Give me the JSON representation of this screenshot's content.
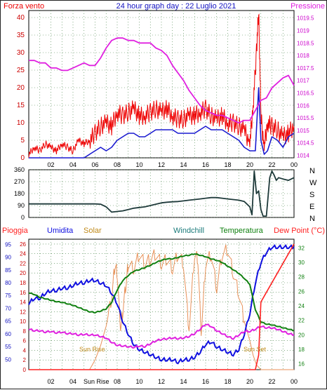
{
  "header": {
    "left_title": "Forza vento",
    "center_title": "24 hour graph day : 22 Luglio 2021",
    "right_title": "Pressione"
  },
  "colors": {
    "wind": "#ee0000",
    "gust_line": "#1a1ad0",
    "pressure": "#e020e0",
    "direction": "#1e3a3a",
    "humidity": "#1010e0",
    "solar": "#e8925a",
    "windchill": "#1a7a7a",
    "temperature": "#108010",
    "dewpoint": "#ff2020",
    "rain": "#ff2020",
    "grid": "#3a7a3a",
    "axis": "#000000"
  },
  "chart_data": [
    {
      "type": "line",
      "name": "wind-pressure-panel",
      "title": "24 hour graph day : 22 Luglio 2021",
      "x_ticks": [
        "02",
        "04",
        "06",
        "08",
        "10",
        "12",
        "14",
        "16",
        "18",
        "20",
        "22",
        "00"
      ],
      "xlim": [
        0,
        24
      ],
      "left_axis": {
        "label": "Forza vento",
        "ticks": [
          0,
          5,
          10,
          15,
          20,
          25,
          30,
          35,
          40
        ],
        "ylim": [
          0,
          42
        ]
      },
      "right_axis": {
        "label": "Pressione",
        "ticks": [
          "1014",
          "1014.5",
          "1015",
          "1015.5",
          "1016",
          "1016.5",
          "1017",
          "1017.5",
          "1018",
          "1018.5",
          "1019",
          "1019.5"
        ],
        "ylim": [
          1013.9,
          1019.8
        ]
      },
      "series": [
        {
          "name": "Forza vento",
          "axis": "left",
          "x": [
            0,
            0.5,
            1,
            1.5,
            2,
            2.5,
            3,
            3.5,
            4,
            4.5,
            5,
            5.5,
            6,
            6.5,
            7,
            7.5,
            8,
            8.5,
            9,
            9.5,
            10,
            10.5,
            11,
            11.5,
            12,
            12.5,
            13,
            13.5,
            14,
            14.5,
            15,
            15.5,
            16,
            16.5,
            17,
            17.5,
            18,
            18.5,
            19,
            19.5,
            20,
            20.3,
            20.6,
            20.8,
            21,
            21.3,
            21.6,
            22,
            22.5,
            23,
            23.5,
            24
          ],
          "y": [
            1,
            3,
            2,
            4,
            3,
            2,
            4,
            3,
            2,
            5,
            4,
            5,
            7,
            9,
            10,
            9,
            13,
            12,
            13,
            14,
            12,
            12,
            13,
            14,
            13,
            14,
            12,
            11,
            11,
            12,
            12,
            13,
            14,
            12,
            11,
            12,
            10,
            10,
            9,
            8,
            4,
            15,
            30,
            42,
            12,
            3,
            10,
            9,
            8,
            6,
            7,
            9
          ]
        },
        {
          "name": "",
          "axis": "left",
          "x": [
            0,
            1,
            2,
            3,
            4,
            5,
            5.5,
            6,
            6.5,
            7,
            7.5,
            8,
            8.5,
            9,
            9.5,
            10,
            10.5,
            11,
            11.5,
            12,
            12.5,
            13,
            13.5,
            14,
            14.5,
            15,
            15.5,
            16,
            16.5,
            17,
            17.5,
            18,
            18.5,
            19,
            19.5,
            20,
            20.5,
            20.8,
            21,
            21.3,
            21.6,
            22,
            22.5,
            23,
            23.5,
            24
          ],
          "y": [
            0,
            0,
            0,
            0,
            0,
            0,
            1,
            2,
            3,
            2,
            3,
            5,
            6,
            7,
            7,
            6,
            6,
            7,
            8,
            8,
            8,
            8,
            7,
            7,
            7,
            7,
            8,
            9,
            8,
            8,
            8,
            7,
            6,
            5,
            3,
            2,
            2,
            20,
            5,
            1,
            2,
            6,
            5,
            3,
            6,
            7
          ]
        },
        {
          "name": "Pressione",
          "axis": "right",
          "x": [
            0,
            0.5,
            1,
            1.5,
            2,
            2.5,
            3,
            3.5,
            4,
            4.5,
            5,
            5.5,
            6,
            6.5,
            7,
            7.5,
            8,
            8.5,
            9,
            9.5,
            10,
            10.5,
            11,
            11.5,
            12,
            12.5,
            13,
            13.5,
            14,
            14.5,
            15,
            15.5,
            16,
            16.5,
            17,
            17.5,
            18,
            18.5,
            19,
            19.5,
            20,
            20.5,
            21,
            21.5,
            22,
            22.5,
            23,
            23.5,
            24
          ],
          "y": [
            1017.8,
            1017.8,
            1017.7,
            1017.7,
            1017.5,
            1017.5,
            1017.4,
            1017.4,
            1017.5,
            1017.6,
            1017.7,
            1017.6,
            1017.6,
            1017.9,
            1018.3,
            1018.6,
            1018.7,
            1018.7,
            1018.6,
            1018.6,
            1018.5,
            1018.5,
            1018.5,
            1018.3,
            1018.2,
            1018.0,
            1017.6,
            1017.3,
            1017.0,
            1016.6,
            1016.3,
            1016.0,
            1015.8,
            1015.7,
            1015.6,
            1015.6,
            1015.5,
            1015.4,
            1015.3,
            1015.4,
            1015.4,
            1015.8,
            1016.2,
            1016.3,
            1016.7,
            1016.9,
            1017.1,
            1017.2,
            1016.8
          ]
        }
      ]
    },
    {
      "type": "line",
      "name": "wind-direction-panel",
      "left_ticks": [
        0,
        90,
        180,
        270,
        360
      ],
      "ylim": [
        0,
        360
      ],
      "right_labels": [
        "N",
        "W",
        "S",
        "E",
        "N"
      ],
      "series": [
        {
          "name": "",
          "x": [
            0,
            1,
            2,
            3,
            4,
            5,
            5.5,
            6,
            6.5,
            7,
            7.5,
            8,
            8.5,
            9,
            9.5,
            10,
            10.5,
            11,
            11.5,
            12,
            12.5,
            13,
            13.5,
            14,
            14.5,
            15,
            15.5,
            16,
            16.5,
            17,
            17.5,
            18,
            18.5,
            19,
            19.5,
            20,
            20.2,
            20.4,
            20.6,
            20.8,
            21,
            21.2,
            21.5,
            21.8,
            22,
            22.2,
            22.4,
            22.6,
            23,
            23.5,
            24
          ],
          "y": [
            102,
            102,
            102,
            102,
            102,
            102,
            102,
            102,
            100,
            80,
            40,
            45,
            50,
            60,
            70,
            75,
            80,
            90,
            100,
            110,
            115,
            118,
            120,
            125,
            130,
            135,
            140,
            145,
            150,
            150,
            145,
            140,
            135,
            130,
            120,
            80,
            20,
            350,
            180,
            200,
            60,
            10,
            10,
            300,
            350,
            320,
            280,
            300,
            290,
            280,
            300
          ]
        }
      ]
    },
    {
      "type": "line",
      "name": "humidity-temperature-panel",
      "top_labels": [
        "Pioggia",
        "Umidita",
        "Solar",
        "Windchill",
        "Temperatura",
        "Dew Point (°C)"
      ],
      "annotations": [
        "Sun Rise",
        "Sun Set"
      ],
      "bottom_extra_label": "Sun Rise",
      "left_axis_rain": {
        "ticks": [
          0,
          2,
          4,
          6,
          8,
          10,
          12,
          14,
          16,
          18,
          20,
          22,
          24,
          26
        ],
        "ylim": [
          0,
          27
        ]
      },
      "left_axis_humidity": {
        "ticks": [
          50,
          55,
          60,
          65,
          70,
          75,
          80,
          85,
          90,
          95
        ],
        "ylim": [
          46,
          97
        ]
      },
      "right_axis": {
        "ticks": [
          16,
          18,
          20,
          22,
          24,
          26,
          28,
          30,
          32
        ],
        "ylim": [
          15.2,
          33.2
        ]
      },
      "series": [
        {
          "name": "Umidita",
          "axis": "humidity",
          "x": [
            0,
            0.5,
            1,
            1.5,
            2,
            2.5,
            3,
            3.5,
            4,
            4.5,
            5,
            5.5,
            6,
            6.5,
            7,
            7.5,
            8,
            8.5,
            9,
            9.5,
            10,
            10.5,
            11,
            11.5,
            12,
            12.5,
            13,
            13.5,
            14,
            14.5,
            15,
            15.5,
            16,
            16.5,
            17,
            17.5,
            18,
            18.5,
            19,
            19.5,
            20,
            20.5,
            21,
            21.5,
            22,
            22.5,
            23,
            23.5,
            24
          ],
          "y": [
            72,
            74,
            74,
            76,
            77,
            77,
            78,
            78,
            79,
            80,
            80,
            81,
            81,
            80,
            79,
            76,
            72,
            65,
            60,
            56,
            54,
            53,
            52,
            51,
            50,
            50,
            50,
            49,
            50,
            50,
            51,
            53,
            56,
            57,
            55,
            54,
            53,
            52,
            54,
            60,
            68,
            80,
            88,
            92,
            94,
            94,
            94,
            94,
            94
          ]
        },
        {
          "name": "Temperatura",
          "axis": "temp",
          "x": [
            0,
            0.5,
            1,
            1.5,
            2,
            2.5,
            3,
            3.5,
            4,
            4.5,
            5,
            5.5,
            6,
            6.5,
            7,
            7.5,
            8,
            8.5,
            9,
            9.5,
            10,
            10.5,
            11,
            11.5,
            12,
            12.5,
            13,
            13.5,
            14,
            14.5,
            15,
            15.5,
            16,
            16.5,
            17,
            17.5,
            18,
            18.5,
            19,
            19.5,
            20,
            20.5,
            21,
            21.5,
            22,
            22.5,
            23,
            23.5,
            24
          ],
          "y": [
            25.8,
            25.6,
            25.2,
            25,
            24.8,
            24.6,
            24.5,
            24.3,
            24.1,
            23.8,
            23.5,
            23.2,
            23.1,
            23.3,
            23.6,
            24.5,
            26.2,
            27.5,
            28.2,
            28.8,
            29.0,
            29.3,
            29.6,
            30.0,
            30.3,
            30.5,
            30.5,
            30.7,
            30.9,
            31.0,
            31.2,
            31.0,
            30.8,
            30.5,
            30.3,
            30.0,
            29.5,
            29.0,
            28.5,
            27.8,
            27.0,
            23.5,
            21.8,
            21.5,
            21.4,
            21.2,
            21.0,
            20.8,
            20.6
          ]
        },
        {
          "name": "Dew Point (°C)",
          "axis": "temp",
          "x": [
            0,
            0.5,
            1,
            1.5,
            2,
            2.5,
            3,
            3.5,
            4,
            4.5,
            5,
            5.5,
            6,
            6.5,
            7,
            7.5,
            8,
            8.5,
            9,
            9.5,
            10,
            10.5,
            11,
            11.5,
            12,
            12.5,
            13,
            13.5,
            14,
            14.5,
            15,
            15.5,
            16,
            16.5,
            17,
            17.5,
            18,
            18.5,
            19,
            19.5,
            20,
            20.5,
            21,
            21.5,
            22,
            22.5,
            23,
            23.5,
            24
          ],
          "y": [
            20.8,
            20.6,
            20.6,
            20.4,
            20.5,
            20.3,
            20.4,
            20.2,
            20.2,
            20.0,
            20.1,
            20.0,
            20.0,
            19.8,
            19.6,
            19.0,
            18.6,
            18.5,
            18.4,
            18.3,
            18.5,
            18.4,
            18.8,
            19.2,
            19.4,
            19.5,
            19.6,
            19.5,
            19.6,
            19.8,
            20.2,
            20.8,
            21.5,
            21.2,
            20.6,
            20.2,
            19.8,
            19.5,
            20.0,
            20.5,
            20.5,
            20.8,
            21.2,
            21.0,
            21.0,
            20.8,
            20.5,
            20.2,
            20.0
          ]
        },
        {
          "name": "Solar",
          "axis": "solar",
          "x": [
            0,
            5.5,
            6,
            6.5,
            7,
            7.5,
            7.8,
            8,
            8.3,
            8.5,
            8.8,
            9,
            9.5,
            10,
            10.5,
            11,
            11.5,
            12,
            12.5,
            13,
            13.5,
            14,
            14.5,
            15,
            15.3,
            15.6,
            16,
            16.5,
            17,
            17.5,
            18,
            18.5,
            19,
            19.5,
            20,
            20.3,
            20.6,
            21,
            24
          ],
          "y": [
            0,
            0,
            2,
            5,
            9,
            15,
            22,
            20,
            8,
            12,
            18,
            22,
            21,
            24,
            22,
            23,
            24,
            22,
            23,
            21,
            24,
            22,
            8,
            24,
            23,
            7,
            22,
            24,
            17,
            24,
            25,
            20,
            16,
            10,
            6,
            3,
            1,
            0,
            0
          ]
        },
        {
          "name": "Pioggia",
          "axis": "rain",
          "x": [
            0,
            20.5,
            20.8,
            21,
            21.5,
            22,
            22.5,
            23,
            23.5,
            24
          ],
          "y": [
            0,
            0,
            3,
            14,
            16,
            18,
            20,
            22,
            24,
            26
          ]
        }
      ]
    }
  ]
}
